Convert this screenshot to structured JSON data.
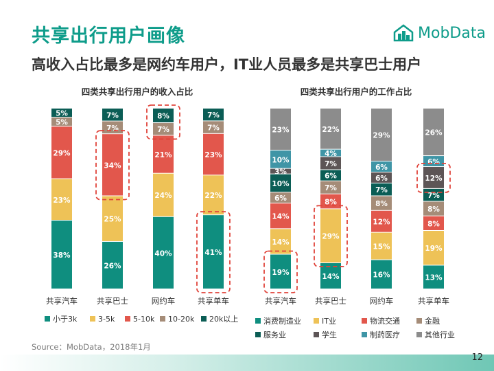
{
  "header": {
    "title": "共享出行用户画像",
    "subtitle": "高收入占比最多是网约车用户，IT业人员最多是共享巴士用户"
  },
  "logo": {
    "text": "MobData",
    "icon": "mobdata-logo-icon",
    "color": "#0e9c8a"
  },
  "footer": {
    "source": "Source：MobData，2018年1月",
    "page_number": "12"
  },
  "chart_data": [
    {
      "type": "bar",
      "stacked": true,
      "title": "四类共享出行用户的收入占比",
      "categories": [
        "共享汽车",
        "共享巴士",
        "网约车",
        "共享单车"
      ],
      "series": [
        {
          "name": "小于3k",
          "color": "#0f8e7f",
          "values": [
            38,
            26,
            40,
            41
          ]
        },
        {
          "name": "3-5k",
          "color": "#eec257",
          "values": [
            23,
            25,
            24,
            22
          ]
        },
        {
          "name": "5-10k",
          "color": "#e2574c",
          "values": [
            29,
            34,
            21,
            23
          ]
        },
        {
          "name": "10-20k",
          "color": "#a58c78",
          "values": [
            5,
            7,
            7,
            7
          ]
        },
        {
          "name": "20k以上",
          "color": "#0b5d55",
          "values": [
            5,
            7,
            8,
            7
          ]
        }
      ],
      "highlights": [
        {
          "category": "共享巴士",
          "series": [
            "5-10k"
          ]
        },
        {
          "category": "网约车",
          "series": [
            "10-20k",
            "20k以上"
          ]
        },
        {
          "category": "共享单车",
          "series": [
            "小于3k"
          ]
        }
      ]
    },
    {
      "type": "bar",
      "stacked": true,
      "title": "四类共享出行用户的工作占比",
      "categories": [
        "共享汽车",
        "共享巴士",
        "网约车",
        "共享单车"
      ],
      "series": [
        {
          "name": "消费制造业",
          "color": "#0f8e7f",
          "values": [
            19,
            14,
            16,
            13
          ]
        },
        {
          "name": "IT业",
          "color": "#eec257",
          "values": [
            14,
            29,
            15,
            19
          ]
        },
        {
          "name": "物流交通",
          "color": "#e2574c",
          "values": [
            14,
            8,
            12,
            8
          ]
        },
        {
          "name": "金融",
          "color": "#a58c78",
          "values": [
            6,
            7,
            8,
            8
          ]
        },
        {
          "name": "服务业",
          "color": "#0b5d55",
          "values": [
            10,
            6,
            7,
            7
          ]
        },
        {
          "name": "学生",
          "color": "#5d5556",
          "values": [
            3,
            7,
            6,
            12
          ]
        },
        {
          "name": "制药医疗",
          "color": "#3f95a6",
          "values": [
            10,
            4,
            6,
            6
          ]
        },
        {
          "name": "其他行业",
          "color": "#8c8c8c",
          "values": [
            23,
            22,
            29,
            26
          ]
        }
      ],
      "highlights": [
        {
          "category": "共享汽车",
          "series": [
            "消费制造业"
          ]
        },
        {
          "category": "共享巴士",
          "series": [
            "IT业"
          ]
        },
        {
          "category": "共享单车",
          "series": [
            "学生"
          ]
        }
      ]
    }
  ]
}
